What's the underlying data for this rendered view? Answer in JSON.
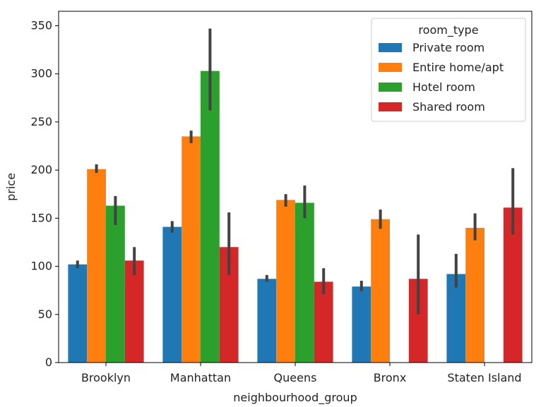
{
  "chart_data": {
    "type": "bar",
    "xlabel": "neighbourhood_group",
    "ylabel": "price",
    "ylim": [
      0,
      365
    ],
    "yticks": [
      0,
      50,
      100,
      150,
      200,
      250,
      300,
      350
    ],
    "grid": false,
    "legend_position": "top-right",
    "legend_title": "room_type",
    "categories": [
      "Brooklyn",
      "Manhattan",
      "Queens",
      "Bronx",
      "Staten Island"
    ],
    "series": [
      {
        "name": "Private room",
        "color": "#1f77b4",
        "values": [
          102,
          141,
          87,
          79,
          92
        ],
        "ci_low": [
          98,
          135,
          84,
          74,
          78
        ],
        "ci_high": [
          106,
          147,
          91,
          85,
          113
        ]
      },
      {
        "name": "Entire home/apt",
        "color": "#ff7f0e",
        "values": [
          201,
          235,
          169,
          149,
          140
        ],
        "ci_low": [
          197,
          228,
          162,
          139,
          127
        ],
        "ci_high": [
          206,
          241,
          175,
          159,
          155
        ]
      },
      {
        "name": "Hotel room",
        "color": "#2ca02c",
        "values": [
          163,
          303,
          166,
          null,
          null
        ],
        "ci_low": [
          143,
          262,
          150,
          null,
          null
        ],
        "ci_high": [
          173,
          347,
          184,
          null,
          null
        ]
      },
      {
        "name": "Shared room",
        "color": "#d62728",
        "values": [
          106,
          120,
          84,
          87,
          161
        ],
        "ci_low": [
          91,
          91,
          71,
          50,
          133
        ],
        "ci_high": [
          120,
          156,
          98,
          133,
          202
        ]
      }
    ]
  }
}
